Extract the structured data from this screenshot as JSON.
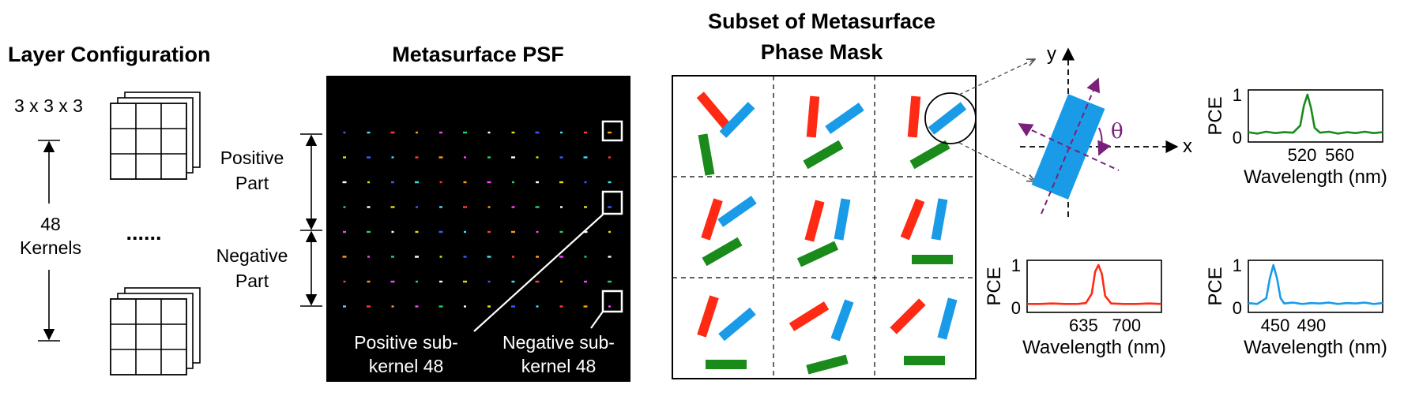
{
  "layer_config": {
    "title": "Layer Configuration",
    "kernel_dims": "3 x 3 x 3",
    "kernel_count": "48",
    "kernel_word": "Kernels",
    "ellipsis": "......"
  },
  "psf": {
    "title": "Metasurface PSF",
    "positive_part": [
      "Positive",
      "Part"
    ],
    "negative_part": [
      "Negative",
      "Part"
    ],
    "positive_sub": [
      "Positive sub-",
      "kernel 48"
    ],
    "negative_sub": [
      "Negative sub-",
      "kernel 48"
    ],
    "grid_rows": 8,
    "grid_cols": 12
  },
  "phase_mask": {
    "title_line1": "Subset of Metasurface",
    "title_line2": "Phase Mask",
    "colors": {
      "red": "#ff2a14",
      "blue": "#1a9be8",
      "green": "#1a8a1a"
    }
  },
  "rotation": {
    "x_label": "x",
    "y_label": "y",
    "angle_label": "θ",
    "pillar_color": "#1a9be8",
    "axis_color": "#7a1f7a"
  },
  "charts": {
    "y_label": "PCE",
    "x_label": "Wavelength (nm)"
  },
  "chart_data": [
    {
      "type": "line",
      "title": "",
      "xlabel": "Wavelength (nm)",
      "ylabel": "PCE",
      "xlim": [
        470,
        620
      ],
      "ylim": [
        0,
        1
      ],
      "x_ticks": [
        "520",
        "560"
      ],
      "y_ticks": [
        "0",
        "1"
      ],
      "series": [
        {
          "color": "#1a8a1a",
          "x": [
            470,
            480,
            490,
            500,
            510,
            520,
            528,
            532,
            536,
            540,
            544,
            550,
            560,
            570,
            580,
            590,
            600,
            610,
            620
          ],
          "y": [
            0.15,
            0.12,
            0.16,
            0.13,
            0.15,
            0.14,
            0.3,
            0.75,
            1.0,
            0.7,
            0.25,
            0.14,
            0.16,
            0.12,
            0.15,
            0.13,
            0.16,
            0.13,
            0.15
          ]
        }
      ]
    },
    {
      "type": "line",
      "title": "",
      "xlabel": "Wavelength (nm)",
      "ylabel": "PCE",
      "xlim": [
        575,
        735
      ],
      "ylim": [
        0,
        1
      ],
      "x_ticks": [
        "635",
        "700"
      ],
      "y_ticks": [
        "0",
        "1"
      ],
      "series": [
        {
          "color": "#ff2a14",
          "x": [
            575,
            590,
            605,
            620,
            635,
            645,
            652,
            656,
            660,
            664,
            668,
            675,
            690,
            705,
            720,
            735
          ],
          "y": [
            0.12,
            0.12,
            0.13,
            0.12,
            0.12,
            0.14,
            0.35,
            0.85,
            1.0,
            0.8,
            0.3,
            0.13,
            0.12,
            0.12,
            0.13,
            0.12
          ]
        }
      ]
    },
    {
      "type": "line",
      "title": "",
      "xlabel": "Wavelength (nm)",
      "ylabel": "PCE",
      "xlim": [
        440,
        590
      ],
      "ylim": [
        0,
        1
      ],
      "x_ticks": [
        "450",
        "490"
      ],
      "y_ticks": [
        "0",
        "1"
      ],
      "series": [
        {
          "color": "#1a9be8",
          "x": [
            440,
            450,
            460,
            464,
            468,
            472,
            476,
            480,
            490,
            500,
            510,
            520,
            530,
            540,
            550,
            560,
            570,
            580,
            590
          ],
          "y": [
            0.14,
            0.12,
            0.25,
            0.7,
            1.0,
            0.7,
            0.25,
            0.13,
            0.15,
            0.12,
            0.14,
            0.13,
            0.15,
            0.12,
            0.14,
            0.13,
            0.15,
            0.12,
            0.14
          ]
        }
      ]
    }
  ]
}
